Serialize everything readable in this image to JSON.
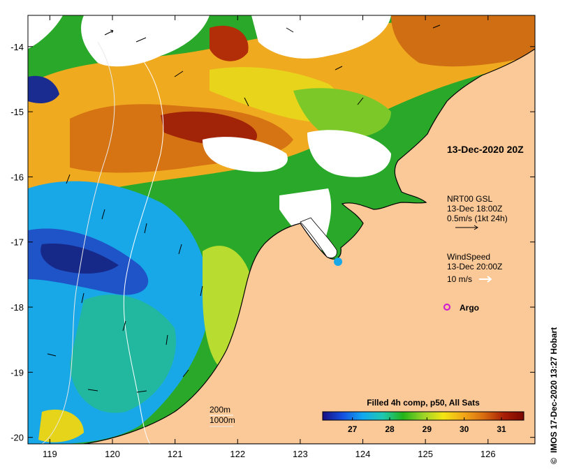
{
  "chart_data": {
    "type": "heatmap",
    "title": "13-Dec-2020 20Z",
    "xlim": [
      118.65,
      126.75
    ],
    "ylim": [
      -20.1,
      -13.52
    ],
    "x_ticks": [
      119,
      120,
      121,
      122,
      123,
      124,
      125,
      126
    ],
    "x_tick_labels": [
      "119",
      "120",
      "121",
      "122",
      "123",
      "124",
      "125",
      "126"
    ],
    "y_ticks": [
      -14,
      -15,
      -16,
      -17,
      -18,
      -19,
      -20
    ],
    "y_tick_labels": [
      "-14",
      "-15",
      "-16",
      "-17",
      "-18",
      "-19",
      "-20"
    ],
    "colorbar": {
      "title": "Filled 4h comp, p50, All Sats",
      "range": [
        26.2,
        31.6
      ],
      "ticks": [
        27,
        28,
        29,
        30,
        31
      ],
      "tick_labels": [
        "27",
        "28",
        "29",
        "30",
        "31"
      ],
      "colors": [
        "#1a0f80",
        "#1450e0",
        "#12a8f0",
        "#20c8b0",
        "#22b418",
        "#9ad428",
        "#f4e612",
        "#f2a818",
        "#d86c10",
        "#a81e06",
        "#7a0600"
      ]
    },
    "colors": {
      "land": "#fbc898",
      "no_data": "#ffffff",
      "coast": "#000000",
      "argo": "#d020d0",
      "contour": "#ffffff"
    },
    "legends": {
      "currents": {
        "name": "NRT00 GSL",
        "time": "13-Dec 18:00Z",
        "scale": "0.5m/s (1kt 24h)"
      },
      "wind": {
        "name": "WindSpeed",
        "time": "13-Dec 20:00Z",
        "scale": "10 m/s"
      },
      "argo": {
        "name": "Argo"
      },
      "contours": [
        "200m",
        "1000m"
      ]
    },
    "credit": "IMOS 17-Dec-2020 13:27 Hobart",
    "credit_symbol": "©"
  }
}
